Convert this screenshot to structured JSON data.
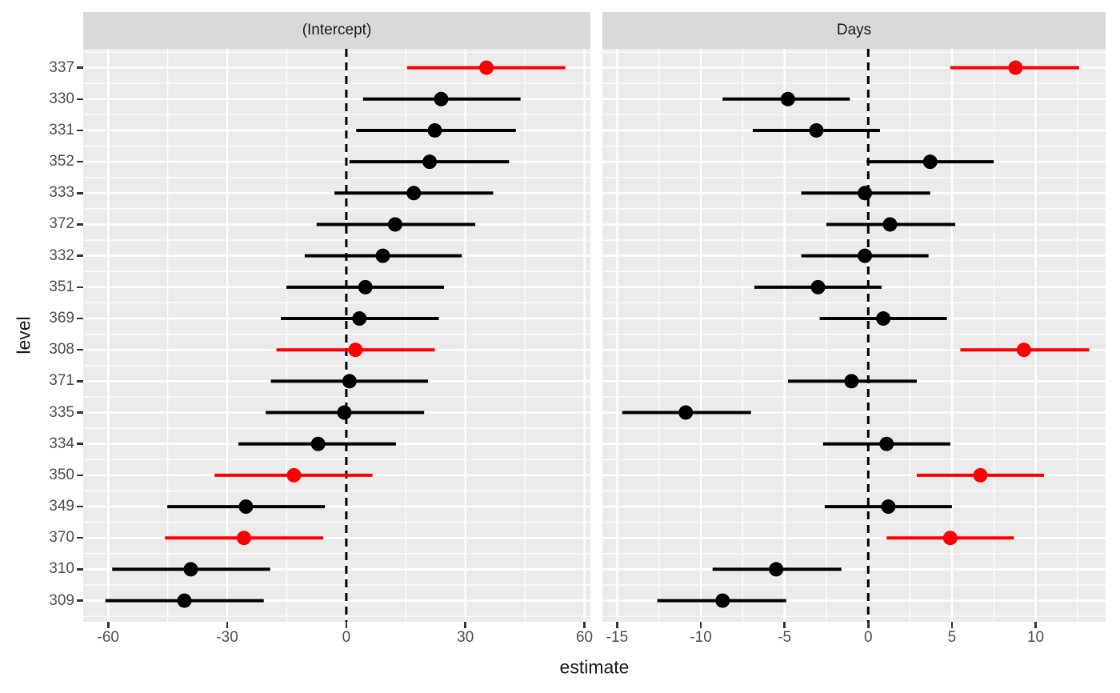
{
  "chart_data": {
    "type": "dot-whisker",
    "title": "",
    "xlabel": "estimate",
    "ylabel": "level",
    "grid": true,
    "legend": false,
    "colors": {
      "default": "#000000",
      "highlight": "#ff0000",
      "panel_bg": "#ebebeb",
      "strip_bg": "#d9d9d9",
      "gridline": "#ffffff",
      "zero_line": "#000000",
      "tick_label": "#4d4d4d",
      "axis_title": "#1a1a1a",
      "tick_mark": "#333333"
    },
    "levels": [
      "337",
      "330",
      "331",
      "352",
      "333",
      "372",
      "332",
      "351",
      "369",
      "308",
      "371",
      "335",
      "334",
      "350",
      "349",
      "370",
      "310",
      "309"
    ],
    "highlighted_levels": [
      "337",
      "308",
      "350",
      "370"
    ],
    "zero_reference_line": 0,
    "facets": [
      {
        "label": "(Intercept)",
        "xlim": [
          -66.3,
          61.5
        ],
        "major_ticks": [
          -60,
          -30,
          0,
          30,
          60
        ],
        "minor_ticks": [
          -45,
          -15,
          15,
          45
        ],
        "tick_labels": [
          "-60",
          "-30",
          "0",
          "30",
          "60"
        ],
        "rows": [
          {
            "level": "337",
            "estimate": 35.3,
            "lower": 15.3,
            "upper": 55.2,
            "highlight": true
          },
          {
            "level": "330",
            "estimate": 23.9,
            "lower": 4.2,
            "upper": 43.9,
            "highlight": false
          },
          {
            "level": "331",
            "estimate": 22.3,
            "lower": 2.5,
            "upper": 42.7,
            "highlight": false
          },
          {
            "level": "352",
            "estimate": 21.0,
            "lower": 0.8,
            "upper": 41.0,
            "highlight": false
          },
          {
            "level": "333",
            "estimate": 17.0,
            "lower": -3.0,
            "upper": 37.0,
            "highlight": false
          },
          {
            "level": "372",
            "estimate": 12.3,
            "lower": -7.5,
            "upper": 32.5,
            "highlight": false
          },
          {
            "level": "332",
            "estimate": 9.2,
            "lower": -10.5,
            "upper": 29.1,
            "highlight": false
          },
          {
            "level": "351",
            "estimate": 4.8,
            "lower": -15.1,
            "upper": 24.6,
            "highlight": false
          },
          {
            "level": "369",
            "estimate": 3.3,
            "lower": -16.5,
            "upper": 23.3,
            "highlight": false
          },
          {
            "level": "308",
            "estimate": 2.3,
            "lower": -17.6,
            "upper": 22.3,
            "highlight": true
          },
          {
            "level": "371",
            "estimate": 0.8,
            "lower": -19.0,
            "upper": 20.6,
            "highlight": false
          },
          {
            "level": "335",
            "estimate": -0.5,
            "lower": -20.3,
            "upper": 19.6,
            "highlight": false
          },
          {
            "level": "334",
            "estimate": -7.1,
            "lower": -27.2,
            "upper": 12.5,
            "highlight": false
          },
          {
            "level": "350",
            "estimate": -13.2,
            "lower": -33.2,
            "upper": 6.6,
            "highlight": true
          },
          {
            "level": "349",
            "estimate": -25.3,
            "lower": -45.1,
            "upper": -5.4,
            "highlight": false
          },
          {
            "level": "370",
            "estimate": -25.8,
            "lower": -45.7,
            "upper": -5.8,
            "highlight": true
          },
          {
            "level": "310",
            "estimate": -39.2,
            "lower": -59.0,
            "upper": -19.2,
            "highlight": false
          },
          {
            "level": "309",
            "estimate": -40.8,
            "lower": -60.7,
            "upper": -20.8,
            "highlight": false
          }
        ]
      },
      {
        "label": "Days",
        "xlim": [
          -15.88,
          14.18
        ],
        "major_ticks": [
          -15,
          -10,
          -5,
          0,
          5,
          10
        ],
        "minor_ticks": [
          -12.5,
          -7.5,
          -2.5,
          2.5,
          7.5,
          12.5
        ],
        "tick_labels": [
          "-15",
          "-10",
          "-5",
          "0",
          "5",
          "10"
        ],
        "rows": [
          {
            "level": "337",
            "estimate": 8.8,
            "lower": 4.9,
            "upper": 12.6,
            "highlight": true
          },
          {
            "level": "330",
            "estimate": -4.8,
            "lower": -8.7,
            "upper": -1.1,
            "highlight": false
          },
          {
            "level": "331",
            "estimate": -3.1,
            "lower": -6.9,
            "upper": 0.7,
            "highlight": false
          },
          {
            "level": "352",
            "estimate": 3.7,
            "lower": -0.1,
            "upper": 7.5,
            "highlight": false
          },
          {
            "level": "333",
            "estimate": -0.2,
            "lower": -4.0,
            "upper": 3.7,
            "highlight": false
          },
          {
            "level": "372",
            "estimate": 1.3,
            "lower": -2.5,
            "upper": 5.2,
            "highlight": false
          },
          {
            "level": "332",
            "estimate": -0.2,
            "lower": -4.0,
            "upper": 3.6,
            "highlight": false
          },
          {
            "level": "351",
            "estimate": -3.0,
            "lower": -6.8,
            "upper": 0.8,
            "highlight": false
          },
          {
            "level": "369",
            "estimate": 0.9,
            "lower": -2.9,
            "upper": 4.7,
            "highlight": false
          },
          {
            "level": "308",
            "estimate": 9.3,
            "lower": 5.5,
            "upper": 13.2,
            "highlight": true
          },
          {
            "level": "371",
            "estimate": -1.0,
            "lower": -4.8,
            "upper": 2.9,
            "highlight": false
          },
          {
            "level": "335",
            "estimate": -10.9,
            "lower": -14.7,
            "upper": -7.0,
            "highlight": false
          },
          {
            "level": "334",
            "estimate": 1.1,
            "lower": -2.7,
            "upper": 4.9,
            "highlight": false
          },
          {
            "level": "350",
            "estimate": 6.7,
            "lower": 2.9,
            "upper": 10.5,
            "highlight": true
          },
          {
            "level": "349",
            "estimate": 1.2,
            "lower": -2.6,
            "upper": 5.0,
            "highlight": false
          },
          {
            "level": "370",
            "estimate": 4.9,
            "lower": 1.1,
            "upper": 8.7,
            "highlight": true
          },
          {
            "level": "310",
            "estimate": -5.5,
            "lower": -9.3,
            "upper": -1.6,
            "highlight": false
          },
          {
            "level": "309",
            "estimate": -8.7,
            "lower": -12.6,
            "upper": -4.9,
            "highlight": false
          }
        ]
      }
    ]
  }
}
